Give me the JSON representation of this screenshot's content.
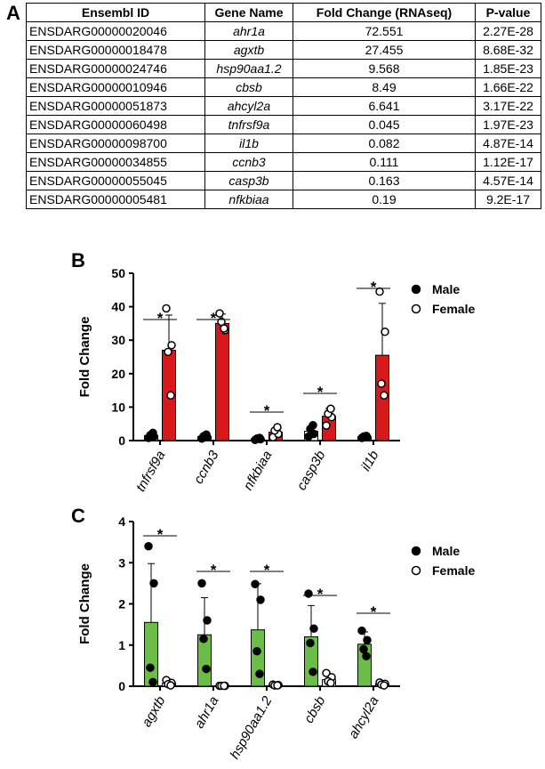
{
  "panels": {
    "a": "A",
    "b": "B",
    "c": "C"
  },
  "table": {
    "headers": [
      "Ensembl ID",
      "Gene Name",
      "Fold Change (RNAseq)",
      "P-value"
    ],
    "rows": [
      [
        "ENSDARG00000020046",
        "ahr1a",
        "72.551",
        "2.27E-28"
      ],
      [
        "ENSDARG00000018478",
        "agxtb",
        "27.455",
        "8.68E-32"
      ],
      [
        "ENSDARG00000024746",
        "hsp90aa1.2",
        "9.568",
        "1.85E-23"
      ],
      [
        "ENSDARG00000010946",
        "cbsb",
        "8.49",
        "1.66E-22"
      ],
      [
        "ENSDARG00000051873",
        "ahcyl2a",
        "6.641",
        "3.17E-22"
      ],
      [
        "ENSDARG00000060498",
        "tnfrsf9a",
        "0.045",
        "1.97E-23"
      ],
      [
        "ENSDARG00000098700",
        "il1b",
        "0.082",
        "4.87E-14"
      ],
      [
        "ENSDARG00000034855",
        "ccnb3",
        "0.111",
        "1.12E-17"
      ],
      [
        "ENSDARG00000055045",
        "casp3b",
        "0.163",
        "4.57E-14"
      ],
      [
        "ENSDARG00000005481",
        "nfkbiaa",
        "0.19",
        "9.2E-17"
      ]
    ]
  },
  "chart_data": [
    {
      "type": "bar",
      "ylabel": "Fold  Change",
      "ylim": [
        0,
        50
      ],
      "yticks": [
        0,
        10,
        20,
        30,
        40,
        50
      ],
      "categories": [
        "tnfrsf9a",
        "ccnb3",
        "nfkbiaa",
        "casp3b",
        "il1b"
      ],
      "legend_position": "top-right",
      "significance": [
        "*",
        "*",
        "*",
        "*",
        "*"
      ],
      "series": [
        {
          "name": "Male",
          "marker": "filled",
          "bar_color": "#ffffff",
          "values": [
            1.5,
            1.2,
            0.5,
            2.8,
            1.1
          ],
          "sd": [
            0.8,
            0.7,
            0.4,
            1.2,
            0.5
          ],
          "points": [
            [
              0.8,
              1.2,
              1.6,
              2.3
            ],
            [
              0.6,
              1.0,
              1.3,
              1.8
            ],
            [
              0.2,
              0.4,
              0.6,
              0.8
            ],
            [
              1.2,
              2.0,
              3.5,
              4.6
            ],
            [
              0.8,
              1.0,
              1.2,
              1.4
            ]
          ]
        },
        {
          "name": "Female",
          "marker": "open",
          "bar_color": "#d7191c",
          "values": [
            27.0,
            35.0,
            2.5,
            7.3,
            25.5
          ],
          "sd": [
            10.5,
            2.8,
            1.2,
            2.3,
            15.5
          ],
          "points": [
            [
              39.5,
              28.5,
              26.5,
              13.5
            ],
            [
              38.0,
              33.0,
              35.5,
              33.5
            ],
            [
              1.0,
              2.0,
              3.0,
              4.0
            ],
            [
              4.5,
              7.0,
              8.0,
              9.5
            ],
            [
              44.5,
              32.5,
              17.0,
              13.5
            ]
          ]
        }
      ]
    },
    {
      "type": "bar",
      "ylabel": "Fold  Change",
      "ylim": [
        0,
        4
      ],
      "yticks": [
        0,
        1,
        2,
        3,
        4
      ],
      "categories": [
        "agxtb",
        "ahr1a",
        "hsp90aa1.2",
        "cbsb",
        "ahcyl2a"
      ],
      "legend_position": "top-right",
      "significance": [
        "*",
        "*",
        "*",
        "*",
        "*"
      ],
      "series": [
        {
          "name": "Male",
          "marker": "filled",
          "bar_color": "#6abd45",
          "values": [
            1.55,
            1.25,
            1.37,
            1.2,
            1.02
          ],
          "sd": [
            1.43,
            0.9,
            1.12,
            0.76,
            0.3
          ],
          "points": [
            [
              3.4,
              2.5,
              0.45,
              0.1
            ],
            [
              2.5,
              1.6,
              1.15,
              0.42
            ],
            [
              2.48,
              2.1,
              0.85,
              0.3
            ],
            [
              2.25,
              1.4,
              1.05,
              0.35
            ],
            [
              1.35,
              1.12,
              0.9,
              0.73
            ]
          ]
        },
        {
          "name": "Female",
          "marker": "open",
          "bar_color": "#ffffff",
          "values": [
            0.07,
            0.01,
            0.03,
            0.16,
            0.05
          ],
          "sd": [
            0.04,
            0.01,
            0.02,
            0.09,
            0.03
          ],
          "points": [
            [
              0.15,
              0.08,
              0.05,
              0.02
            ],
            [
              0.01,
              0.01,
              0.01,
              0.01
            ],
            [
              0.04,
              0.03,
              0.02,
              0.02
            ],
            [
              0.32,
              0.22,
              0.12,
              0.08
            ],
            [
              0.09,
              0.06,
              0.04,
              0.02
            ]
          ]
        }
      ]
    }
  ]
}
